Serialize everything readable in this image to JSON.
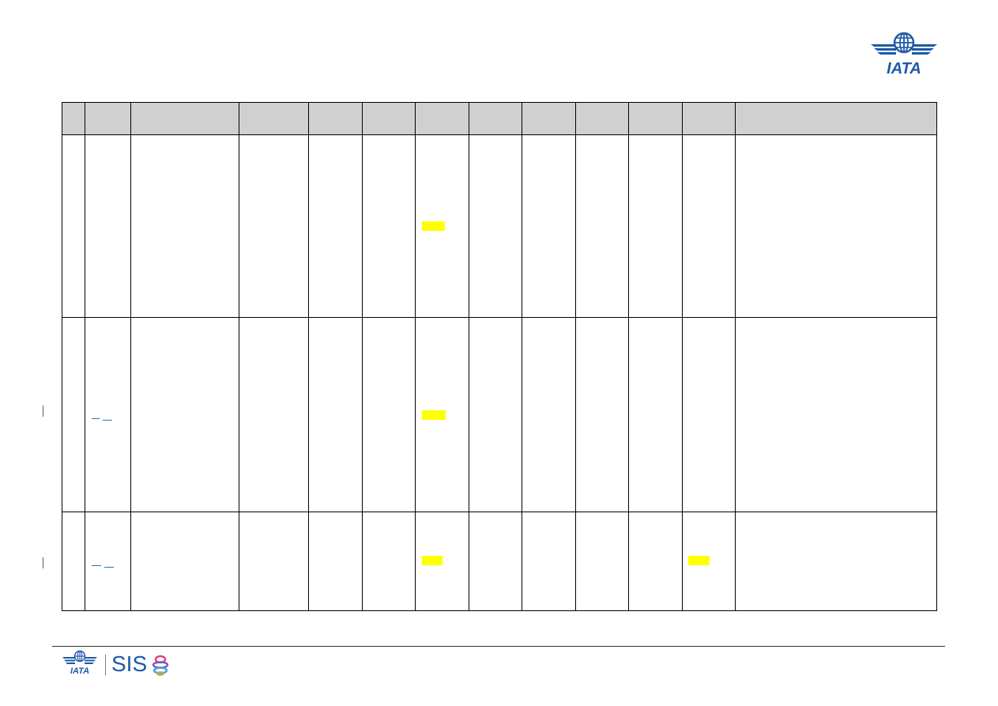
{
  "header": {
    "logo_icon": "iata-logo-icon",
    "logo_text": "IATA"
  },
  "table": {
    "columns": [
      "",
      "",
      "",
      "",
      "",
      "",
      "",
      "",
      "",
      "",
      "",
      "",
      ""
    ],
    "rows": [
      {
        "cells": [
          "",
          "",
          "",
          "",
          "",
          "",
          "",
          "",
          "",
          "",
          "",
          "",
          ""
        ]
      },
      {
        "cells": [
          "",
          "",
          "",
          "",
          "",
          "",
          "",
          "",
          "",
          "",
          "",
          "",
          ""
        ]
      },
      {
        "cells": [
          "",
          "",
          "",
          "",
          "",
          "",
          "",
          "",
          "",
          "",
          "",
          "",
          ""
        ]
      }
    ]
  },
  "colors": {
    "highlight": "#ffff00",
    "header_fill": "#d0d0d0",
    "brand_blue": "#1d5aa6",
    "link": "#2f6fc0"
  },
  "footer": {
    "logo_icon": "iata-footer-logo-icon",
    "logo_text": "IATA",
    "product_name": "SIS",
    "product_icon": "sis-swirl-icon"
  }
}
